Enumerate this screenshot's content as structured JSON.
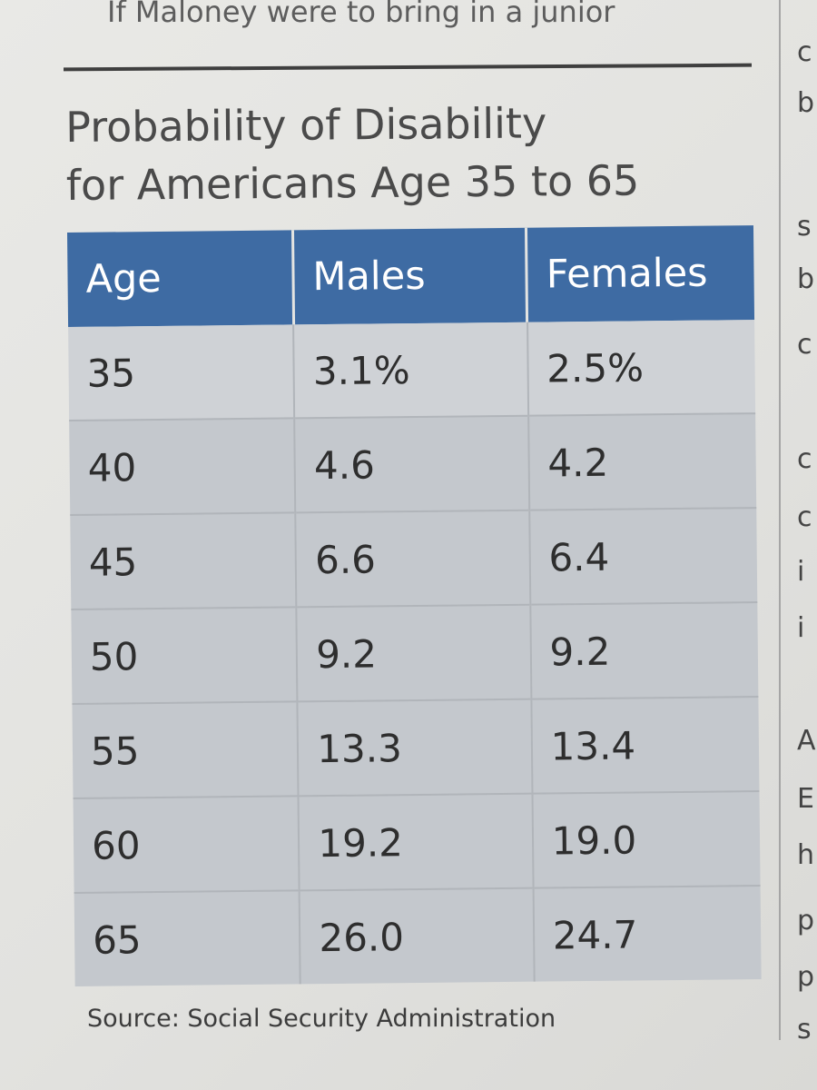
{
  "prev_text": "If Maloney were to bring in a junior",
  "right_column_fragments": [
    "c",
    "b",
    "s",
    "b",
    "c",
    "c",
    "c",
    "i",
    "i",
    "A",
    "E",
    "h",
    "p",
    "p",
    "s"
  ],
  "title_line1": "Probability of Disability",
  "title_line2": "for Americans Age 35 to 65",
  "table": {
    "headers": [
      "Age",
      "Males",
      "Females"
    ],
    "rows": [
      [
        "35",
        "3.1%",
        "2.5%"
      ],
      [
        "40",
        "4.6",
        "4.2"
      ],
      [
        "45",
        "6.6",
        "6.4"
      ],
      [
        "50",
        "9.2",
        "9.2"
      ],
      [
        "55",
        "13.3",
        "13.4"
      ],
      [
        "60",
        "19.2",
        "19.0"
      ],
      [
        "65",
        "26.0",
        "24.7"
      ]
    ]
  },
  "source": "Source: Social Security Administration",
  "colors": {
    "header_bg": "#3e6ba3",
    "row_bg": "#c4c8cd",
    "paper": "#e6e6e3"
  }
}
